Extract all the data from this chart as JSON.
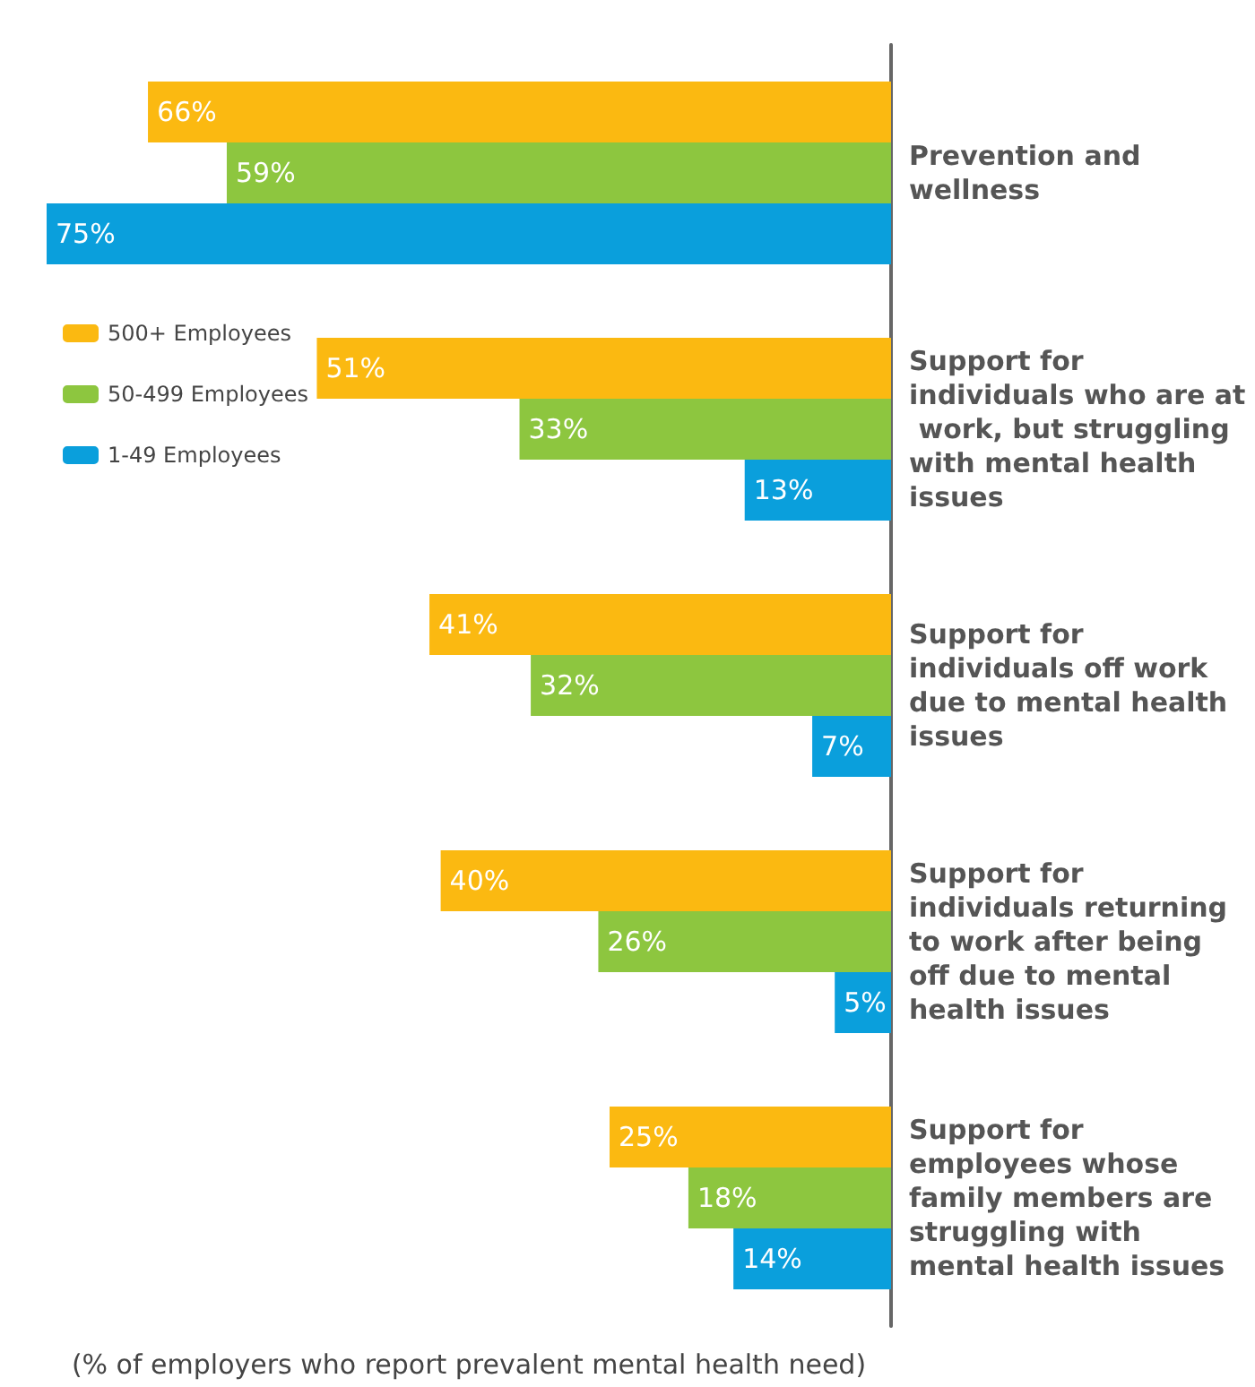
{
  "chart_data": {
    "type": "bar",
    "orientation": "horizontal",
    "categories": [
      "Prevention and wellness",
      "Support for individuals who are at work, but struggling with mental health issues",
      "Support for individuals off work due to mental health issues",
      "Support for individuals returning to work after being off due to mental health issues",
      "Support for employees whose family members are struggling with mental health issues"
    ],
    "series": [
      {
        "name": "500+ Employees",
        "color": "#fbb911",
        "values": [
          66,
          51,
          41,
          40,
          25
        ],
        "value_labels": [
          "66%",
          "51%",
          "41%",
          "40%",
          "25%"
        ]
      },
      {
        "name": "50-499 Employees",
        "color": "#8dc63f",
        "values": [
          59,
          33,
          32,
          26,
          18
        ],
        "value_labels": [
          "59%",
          "33%",
          "32%",
          "26%",
          "18%"
        ]
      },
      {
        "name": "1-49 Employees",
        "color": "#0a9fdc",
        "values": [
          75,
          13,
          7,
          5,
          14
        ],
        "value_labels": [
          "75%",
          "13%",
          "7%",
          "5%",
          "14%"
        ]
      }
    ],
    "xlim": [
      75,
      0
    ],
    "xlabel": "(% of employers who report prevalent mental health need)",
    "legend": "top left",
    "grid": false
  }
}
